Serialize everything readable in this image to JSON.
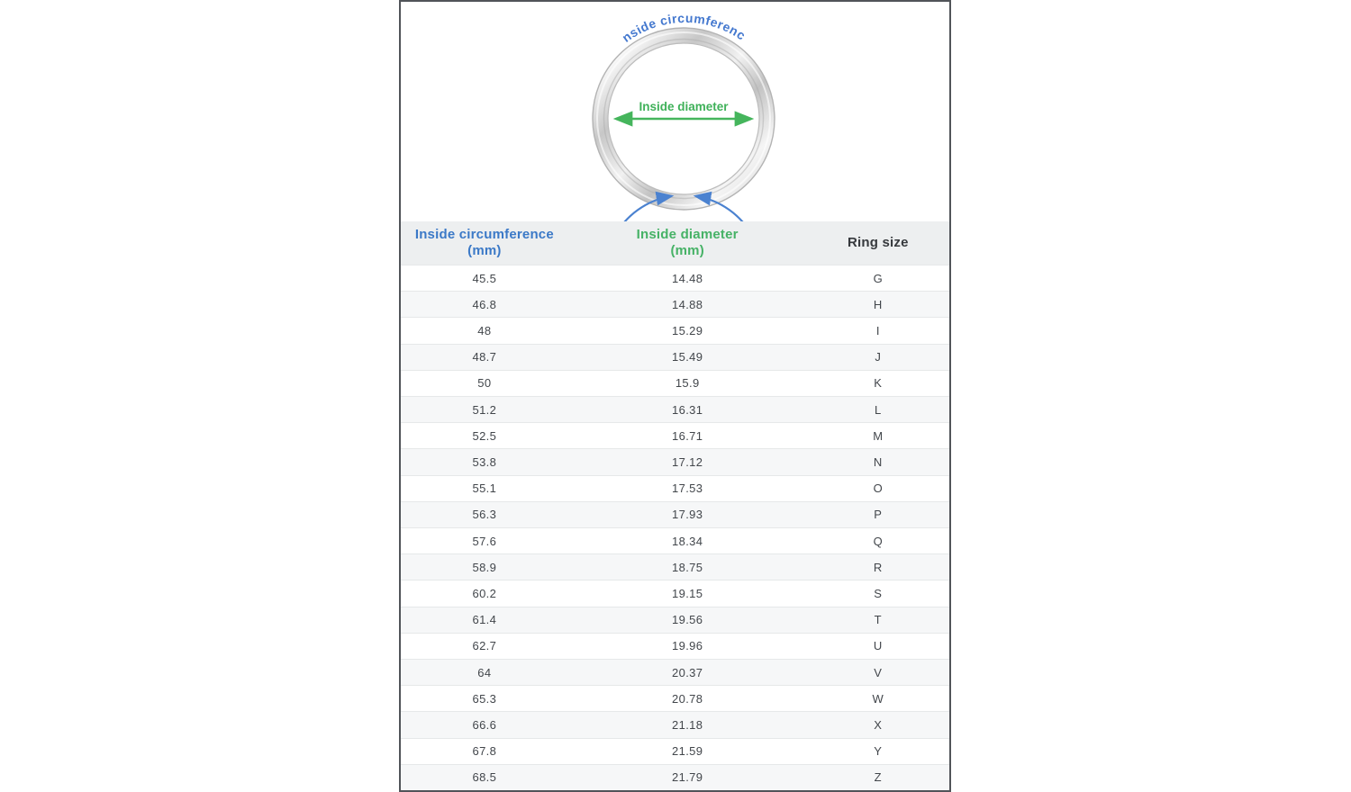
{
  "diagram": {
    "circumference_label": "Inside circumference",
    "diameter_label": "Inside diameter"
  },
  "colors": {
    "accent_blue": "#4b82d0",
    "accent_green": "#45b55c",
    "header_blue": "#3b79c7",
    "header_green": "#46b266",
    "panel_border": "#515459",
    "header_bg": "#edeff0",
    "stripe_bg": "#f6f7f8"
  },
  "chart_data": {
    "type": "table",
    "columns": [
      {
        "label": "Inside circumference",
        "unit": "(mm)"
      },
      {
        "label": "Inside diameter",
        "unit": "(mm)"
      },
      {
        "label": "Ring size",
        "unit": ""
      }
    ],
    "rows": [
      [
        "45.5",
        "14.48",
        "G"
      ],
      [
        "46.8",
        "14.88",
        "H"
      ],
      [
        "48",
        "15.29",
        "I"
      ],
      [
        "48.7",
        "15.49",
        "J"
      ],
      [
        "50",
        "15.9",
        "K"
      ],
      [
        "51.2",
        "16.31",
        "L"
      ],
      [
        "52.5",
        "16.71",
        "M"
      ],
      [
        "53.8",
        "17.12",
        "N"
      ],
      [
        "55.1",
        "17.53",
        "O"
      ],
      [
        "56.3",
        "17.93",
        "P"
      ],
      [
        "57.6",
        "18.34",
        "Q"
      ],
      [
        "58.9",
        "18.75",
        "R"
      ],
      [
        "60.2",
        "19.15",
        "S"
      ],
      [
        "61.4",
        "19.56",
        "T"
      ],
      [
        "62.7",
        "19.96",
        "U"
      ],
      [
        "64",
        "20.37",
        "V"
      ],
      [
        "65.3",
        "20.78",
        "W"
      ],
      [
        "66.6",
        "21.18",
        "X"
      ],
      [
        "67.8",
        "21.59",
        "Y"
      ],
      [
        "68.5",
        "21.79",
        "Z"
      ]
    ]
  }
}
